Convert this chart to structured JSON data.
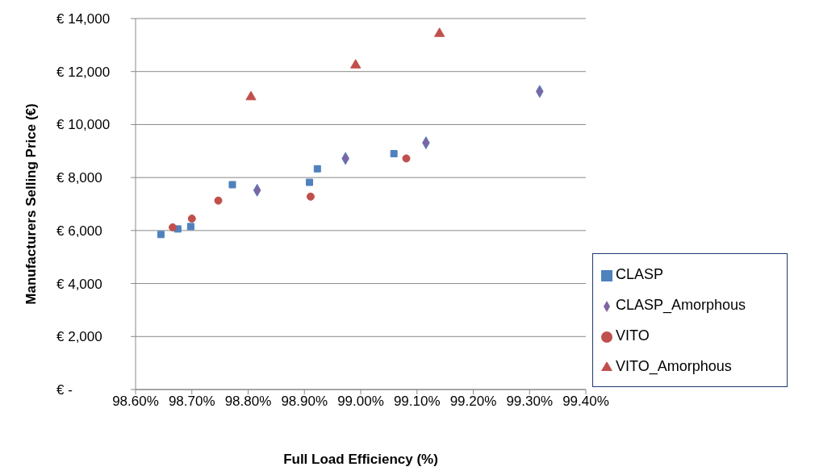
{
  "chart_data": {
    "type": "scatter",
    "xlabel": "Full Load Efficiency  (%)",
    "ylabel": "Manufacturers Selling Price (€)",
    "xlim": [
      98.6,
      99.4
    ],
    "xticks": [
      {
        "value": 98.6,
        "label": "98.60%"
      },
      {
        "value": 98.7,
        "label": "98.70%"
      },
      {
        "value": 98.8,
        "label": "98.80%"
      },
      {
        "value": 98.9,
        "label": "98.90%"
      },
      {
        "value": 99.0,
        "label": "99.00%"
      },
      {
        "value": 99.1,
        "label": "99.10%"
      },
      {
        "value": 99.2,
        "label": "99.20%"
      },
      {
        "value": 99.3,
        "label": "99.30%"
      },
      {
        "value": 99.4,
        "label": "99.40%"
      }
    ],
    "ylim": [
      0,
      14000
    ],
    "yticks": [
      {
        "value": 0,
        "label": "€ -"
      },
      {
        "value": 2000,
        "label": "€ 2,000"
      },
      {
        "value": 4000,
        "label": "€ 4,000"
      },
      {
        "value": 6000,
        "label": "€ 6,000"
      },
      {
        "value": 8000,
        "label": "€ 8,000"
      },
      {
        "value": 10000,
        "label": "€ 10,000"
      },
      {
        "value": 12000,
        "label": "€ 12,000"
      },
      {
        "value": 14000,
        "label": "€ 14,000"
      }
    ],
    "grid": "y",
    "legend": "bottom right",
    "series": [
      {
        "name": "CLASP",
        "color": "#4f81bd",
        "marker": "square",
        "x": [
          98.645,
          98.675,
          98.698,
          98.772,
          98.909,
          98.923,
          99.059
        ],
        "values": [
          5850,
          6060,
          6150,
          7730,
          7820,
          8330,
          8900
        ]
      },
      {
        "name": "CLASP_Amorphous",
        "color": "#8064a2",
        "marker": "diamond",
        "x": [
          98.816,
          98.973,
          99.116,
          99.318
        ],
        "values": [
          7520,
          8720,
          9310,
          11250
        ]
      },
      {
        "name": "VITO",
        "color": "#c0504d",
        "marker": "circle",
        "x": [
          98.666,
          98.7,
          98.747,
          98.911,
          99.081
        ],
        "values": [
          6120,
          6450,
          7130,
          7280,
          8720
        ]
      },
      {
        "name": "VITO_Amorphous",
        "color": "#c0504d",
        "marker": "triangle",
        "x": [
          98.805,
          98.991,
          99.14
        ],
        "values": [
          11040,
          12240,
          13430
        ]
      }
    ]
  }
}
